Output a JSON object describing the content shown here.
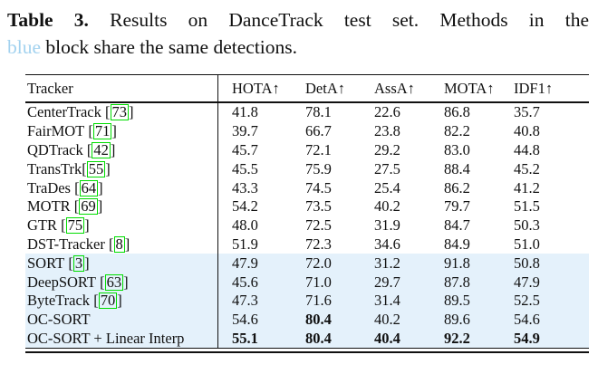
{
  "caption": {
    "label": "Table 3.",
    "line1_rest": "Results on DanceTrack test set.  Methods in the",
    "blue_word": "blue",
    "line2_rest": "block share the same detections."
  },
  "colors": {
    "blue_word": "#a2d2ef",
    "blue_block_bg": "#e4f1fb",
    "cite_box_green": "#00dd00"
  },
  "table": {
    "columns": [
      "Tracker",
      "HOTA↑",
      "DetA↑",
      "AssA↑",
      "MOTA↑",
      "IDF1↑"
    ],
    "rows": [
      {
        "tracker": "CenterTrack",
        "cite": "73",
        "space": true,
        "values": [
          "41.8",
          "78.1",
          "22.6",
          "86.8",
          "35.7"
        ],
        "bold": [],
        "blue": false
      },
      {
        "tracker": "FairMOT",
        "cite": "71",
        "space": true,
        "values": [
          "39.7",
          "66.7",
          "23.8",
          "82.2",
          "40.8"
        ],
        "bold": [],
        "blue": false
      },
      {
        "tracker": "QDTrack",
        "cite": "42",
        "space": true,
        "values": [
          "45.7",
          "72.1",
          "29.2",
          "83.0",
          "44.8"
        ],
        "bold": [],
        "blue": false
      },
      {
        "tracker": "TransTrk",
        "cite": "55",
        "space": false,
        "values": [
          "45.5",
          "75.9",
          "27.5",
          "88.4",
          "45.2"
        ],
        "bold": [],
        "blue": false
      },
      {
        "tracker": "TraDes",
        "cite": "64",
        "space": true,
        "values": [
          "43.3",
          "74.5",
          "25.4",
          "86.2",
          "41.2"
        ],
        "bold": [],
        "blue": false
      },
      {
        "tracker": "MOTR",
        "cite": "69",
        "space": true,
        "values": [
          "54.2",
          "73.5",
          "40.2",
          "79.7",
          "51.5"
        ],
        "bold": [],
        "blue": false
      },
      {
        "tracker": "GTR",
        "cite": "75",
        "space": true,
        "values": [
          "48.0",
          "72.5",
          "31.9",
          "84.7",
          "50.3"
        ],
        "bold": [],
        "blue": false
      },
      {
        "tracker": "DST-Tracker",
        "cite": "8",
        "space": true,
        "values": [
          "51.9",
          "72.3",
          "34.6",
          "84.9",
          "51.0"
        ],
        "bold": [],
        "blue": false
      },
      {
        "tracker": "SORT",
        "cite": "3",
        "space": true,
        "values": [
          "47.9",
          "72.0",
          "31.2",
          "91.8",
          "50.8"
        ],
        "bold": [],
        "blue": true
      },
      {
        "tracker": "DeepSORT",
        "cite": "63",
        "space": true,
        "values": [
          "45.6",
          "71.0",
          "29.7",
          "87.8",
          "47.9"
        ],
        "bold": [],
        "blue": true
      },
      {
        "tracker": "ByteTrack",
        "cite": "70",
        "space": true,
        "values": [
          "47.3",
          "71.6",
          "31.4",
          "89.5",
          "52.5"
        ],
        "bold": [],
        "blue": true
      },
      {
        "tracker": "OC-SORT",
        "cite": null,
        "space": false,
        "values": [
          "54.6",
          "80.4",
          "40.2",
          "89.6",
          "54.6"
        ],
        "bold": [
          1
        ],
        "blue": true
      },
      {
        "tracker": "OC-SORT + Linear Interp",
        "cite": null,
        "space": false,
        "values": [
          "55.1",
          "80.4",
          "40.4",
          "92.2",
          "54.9"
        ],
        "bold": [
          0,
          1,
          2,
          3,
          4
        ],
        "blue": true
      }
    ]
  }
}
